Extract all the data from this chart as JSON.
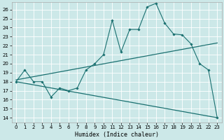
{
  "title": "",
  "xlabel": "Humidex (Indice chaleur)",
  "ylabel": "",
  "bg_color": "#cce8e8",
  "grid_color": "#ffffff",
  "line_color": "#1a7070",
  "xlim": [
    -0.5,
    23.5
  ],
  "ylim": [
    13.5,
    26.8
  ],
  "yticks": [
    14,
    15,
    16,
    17,
    18,
    19,
    20,
    21,
    22,
    23,
    24,
    25,
    26
  ],
  "xticks": [
    0,
    1,
    2,
    3,
    4,
    5,
    6,
    7,
    8,
    9,
    10,
    11,
    12,
    13,
    14,
    15,
    16,
    17,
    18,
    19,
    20,
    21,
    22,
    23
  ],
  "series1_x": [
    0,
    1,
    2,
    3,
    4,
    5,
    6,
    7,
    8,
    9,
    10,
    11,
    12,
    13,
    14,
    15,
    16,
    17,
    18,
    19,
    20,
    21,
    22,
    23
  ],
  "series1_y": [
    18.0,
    19.3,
    18.0,
    18.0,
    16.3,
    17.3,
    17.0,
    17.3,
    19.3,
    20.0,
    21.0,
    24.8,
    21.3,
    23.8,
    23.8,
    26.3,
    26.7,
    24.5,
    23.3,
    23.2,
    22.2,
    20.0,
    19.3,
    14.0
  ],
  "series2_x": [
    0,
    23
  ],
  "series2_y": [
    18.2,
    22.3
  ],
  "series3_x": [
    0,
    23
  ],
  "series3_y": [
    18.0,
    14.0
  ],
  "figsize": [
    3.2,
    2.0
  ],
  "dpi": 100,
  "tick_fontsize": 5,
  "xlabel_fontsize": 6
}
